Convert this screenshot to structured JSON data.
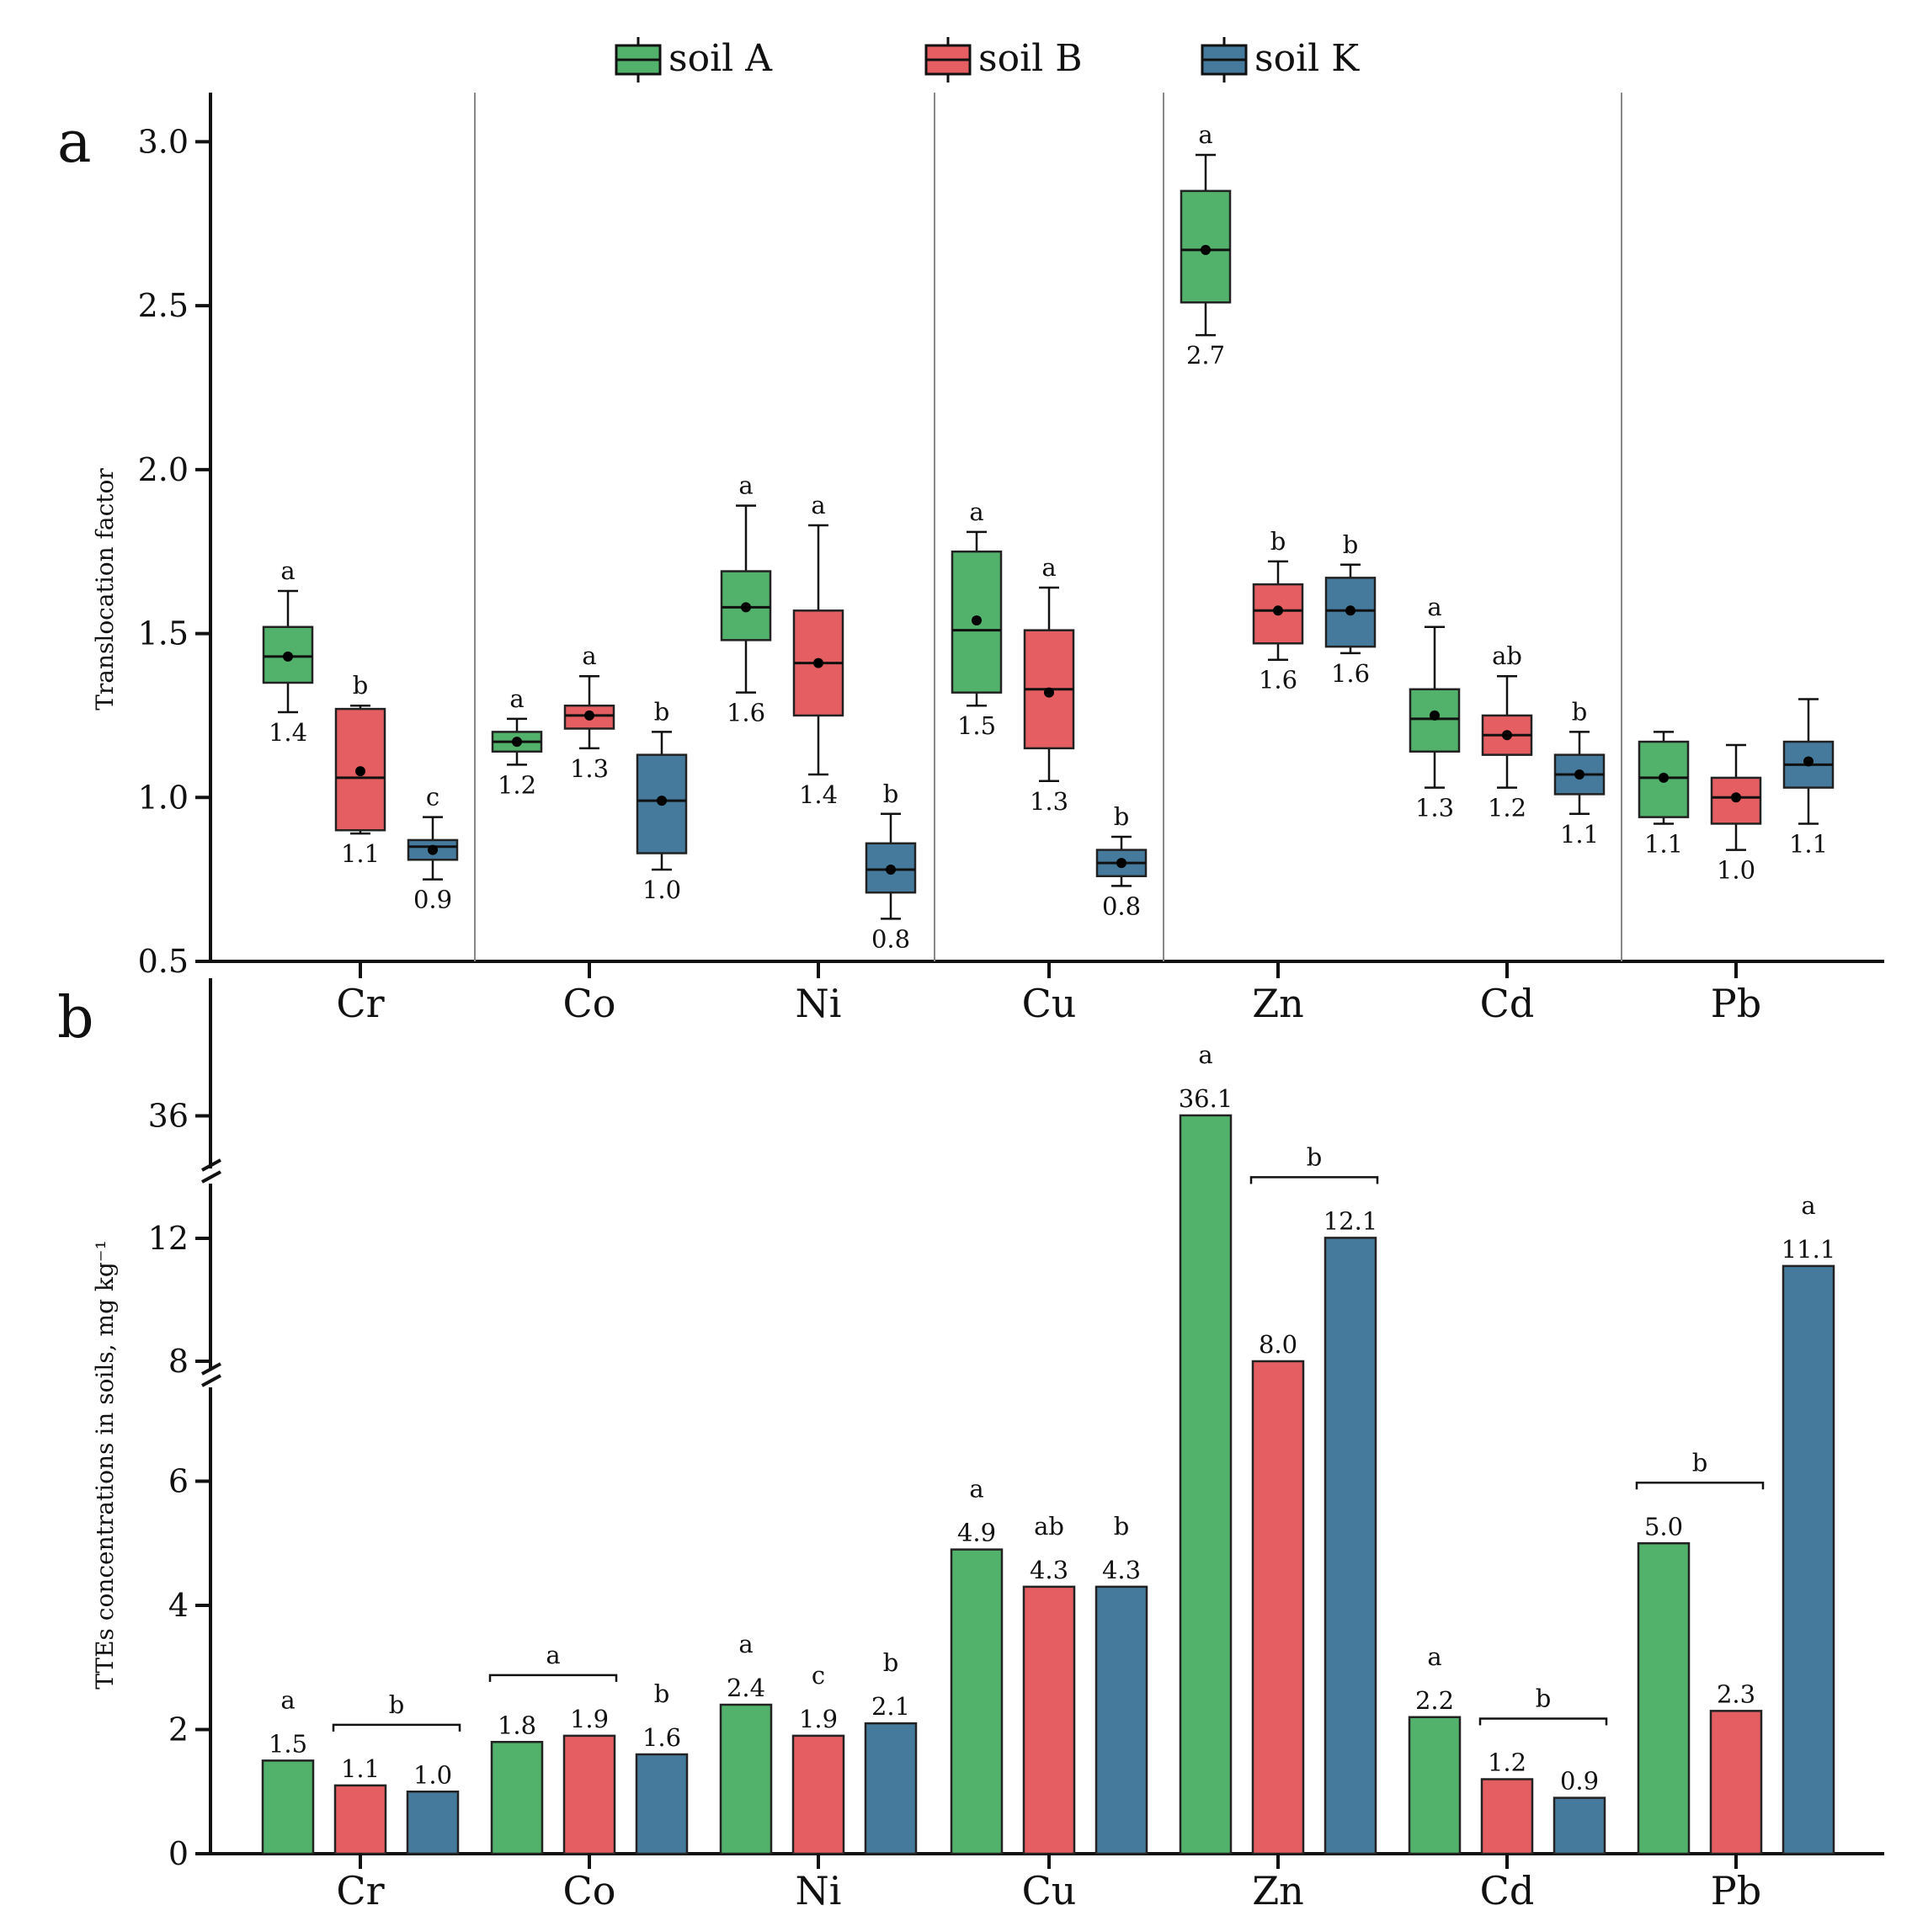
{
  "legend": [
    {
      "name": "soil A",
      "color": "#52b26b"
    },
    {
      "name": "soil B",
      "color": "#e55f62"
    },
    {
      "name": "soil K",
      "color": "#457a9c"
    }
  ],
  "chart_data": [
    {
      "panel": "a",
      "type": "box",
      "ylabel": "Translocation factor",
      "ylim": [
        0.5,
        3.15
      ],
      "yticks": [
        "0.5",
        "1.0",
        "1.5",
        "2.0",
        "2.5",
        "3.0"
      ],
      "categories": [
        "Cr",
        "Co",
        "Ni",
        "Cu",
        "Zn",
        "Cd",
        "Pb"
      ],
      "groups": [
        {
          "category": "Cr",
          "soil": "soil A",
          "min": 1.26,
          "q1": 1.35,
          "median": 1.43,
          "q3": 1.52,
          "max": 1.63,
          "mean": 1.43,
          "label": "1.4",
          "letter": "a"
        },
        {
          "category": "Cr",
          "soil": "soil B",
          "min": 0.89,
          "q1": 0.9,
          "median": 1.06,
          "q3": 1.27,
          "max": 1.28,
          "mean": 1.08,
          "label": "1.1",
          "letter": "b"
        },
        {
          "category": "Cr",
          "soil": "soil K",
          "min": 0.75,
          "q1": 0.81,
          "median": 0.85,
          "q3": 0.87,
          "max": 0.94,
          "mean": 0.84,
          "label": "0.9",
          "letter": "c"
        },
        {
          "category": "Co",
          "soil": "soil A",
          "min": 1.1,
          "q1": 1.14,
          "median": 1.17,
          "q3": 1.2,
          "max": 1.24,
          "mean": 1.17,
          "label": "1.2",
          "letter": "a"
        },
        {
          "category": "Co",
          "soil": "soil B",
          "min": 1.15,
          "q1": 1.21,
          "median": 1.25,
          "q3": 1.28,
          "max": 1.37,
          "mean": 1.25,
          "label": "1.3",
          "letter": "a"
        },
        {
          "category": "Co",
          "soil": "soil K",
          "min": 0.78,
          "q1": 0.83,
          "median": 0.99,
          "q3": 1.13,
          "max": 1.2,
          "mean": 0.99,
          "label": "1.0",
          "letter": "b"
        },
        {
          "category": "Ni",
          "soil": "soil A",
          "min": 1.32,
          "q1": 1.48,
          "median": 1.58,
          "q3": 1.69,
          "max": 1.89,
          "mean": 1.58,
          "label": "1.6",
          "letter": "a"
        },
        {
          "category": "Ni",
          "soil": "soil B",
          "min": 1.07,
          "q1": 1.25,
          "median": 1.41,
          "q3": 1.57,
          "max": 1.83,
          "mean": 1.41,
          "label": "1.4",
          "letter": "a"
        },
        {
          "category": "Ni",
          "soil": "soil K",
          "min": 0.63,
          "q1": 0.71,
          "median": 0.78,
          "q3": 0.86,
          "max": 0.95,
          "mean": 0.78,
          "label": "0.8",
          "letter": "b"
        },
        {
          "category": "Cu",
          "soil": "soil A",
          "min": 1.28,
          "q1": 1.32,
          "median": 1.51,
          "q3": 1.75,
          "max": 1.81,
          "mean": 1.54,
          "label": "1.5",
          "letter": "a"
        },
        {
          "category": "Cu",
          "soil": "soil B",
          "min": 1.05,
          "q1": 1.15,
          "median": 1.33,
          "q3": 1.51,
          "max": 1.64,
          "mean": 1.32,
          "label": "1.3",
          "letter": "a"
        },
        {
          "category": "Cu",
          "soil": "soil K",
          "min": 0.73,
          "q1": 0.76,
          "median": 0.8,
          "q3": 0.84,
          "max": 0.88,
          "mean": 0.8,
          "label": "0.8",
          "letter": "b"
        },
        {
          "category": "Zn",
          "soil": "soil A",
          "min": 2.41,
          "q1": 2.51,
          "median": 2.67,
          "q3": 2.85,
          "max": 2.96,
          "mean": 2.67,
          "label": "2.7",
          "letter": "a"
        },
        {
          "category": "Zn",
          "soil": "soil B",
          "min": 1.42,
          "q1": 1.47,
          "median": 1.57,
          "q3": 1.65,
          "max": 1.72,
          "mean": 1.57,
          "label": "1.6",
          "letter": "b"
        },
        {
          "category": "Zn",
          "soil": "soil K",
          "min": 1.44,
          "q1": 1.46,
          "median": 1.57,
          "q3": 1.67,
          "max": 1.71,
          "mean": 1.57,
          "label": "1.6",
          "letter": "b"
        },
        {
          "category": "Cd",
          "soil": "soil A",
          "min": 1.03,
          "q1": 1.14,
          "median": 1.24,
          "q3": 1.33,
          "max": 1.52,
          "mean": 1.25,
          "label": "1.3",
          "letter": "a"
        },
        {
          "category": "Cd",
          "soil": "soil B",
          "min": 1.03,
          "q1": 1.13,
          "median": 1.19,
          "q3": 1.25,
          "max": 1.37,
          "mean": 1.19,
          "label": "1.2",
          "letter": "ab"
        },
        {
          "category": "Cd",
          "soil": "soil K",
          "min": 0.95,
          "q1": 1.01,
          "median": 1.07,
          "q3": 1.13,
          "max": 1.2,
          "mean": 1.07,
          "label": "1.1",
          "letter": "b"
        },
        {
          "category": "Pb",
          "soil": "soil A",
          "min": 0.92,
          "q1": 0.94,
          "median": 1.06,
          "q3": 1.17,
          "max": 1.2,
          "mean": 1.06,
          "label": "1.1",
          "letter": ""
        },
        {
          "category": "Pb",
          "soil": "soil B",
          "min": 0.84,
          "q1": 0.92,
          "median": 1.0,
          "q3": 1.06,
          "max": 1.16,
          "mean": 1.0,
          "label": "1.0",
          "letter": ""
        },
        {
          "category": "Pb",
          "soil": "soil K",
          "min": 0.92,
          "q1": 1.03,
          "median": 1.1,
          "q3": 1.17,
          "max": 1.3,
          "mean": 1.11,
          "label": "1.1",
          "letter": ""
        }
      ]
    },
    {
      "panel": "b",
      "type": "bar",
      "ylabel": "TTEs concentrations in soils, mg kg⁻¹",
      "yaxis_breaks": "0–6, 8–12, 36",
      "yticks": [
        "0",
        "2",
        "4",
        "6",
        "8",
        "12",
        "36"
      ],
      "categories": [
        "Cr",
        "Co",
        "Ni",
        "Cu",
        "Zn",
        "Cd",
        "Pb"
      ],
      "series": [
        {
          "name": "soil A",
          "values": [
            1.5,
            1.8,
            2.4,
            4.9,
            36.1,
            2.2,
            5.0
          ],
          "labels": [
            "1.5",
            "1.8",
            "2.4",
            "4.9",
            "36.1",
            "2.2",
            "5.0"
          ],
          "letters": [
            "a",
            "",
            "a",
            "a",
            "a",
            "a",
            ""
          ]
        },
        {
          "name": "soil B",
          "values": [
            1.1,
            1.9,
            1.9,
            4.3,
            8.0,
            1.2,
            2.3
          ],
          "labels": [
            "1.1",
            "1.9",
            "1.9",
            "4.3",
            "8.0",
            "1.2",
            "2.3"
          ],
          "letters": [
            "",
            "",
            "c",
            "ab",
            "",
            "",
            ""
          ]
        },
        {
          "name": "soil K",
          "values": [
            1.0,
            1.6,
            2.1,
            4.3,
            12.1,
            0.9,
            11.1
          ],
          "labels": [
            "1.0",
            "1.6",
            "2.1",
            "4.3",
            "12.1",
            "0.9",
            "11.1"
          ],
          "letters": [
            "",
            "b",
            "b",
            "b",
            "",
            "",
            "a"
          ]
        }
      ],
      "brackets": [
        {
          "category": "Cr",
          "span": [
            "soil B",
            "soil K"
          ],
          "letter": "b"
        },
        {
          "category": "Co",
          "span": [
            "soil A",
            "soil B"
          ],
          "letter": "a"
        },
        {
          "category": "Zn",
          "span": [
            "soil B",
            "soil K"
          ],
          "letter": "b"
        },
        {
          "category": "Cd",
          "span": [
            "soil B",
            "soil K"
          ],
          "letter": "b"
        },
        {
          "category": "Pb",
          "span": [
            "soil A",
            "soil B"
          ],
          "letter": "b"
        }
      ]
    }
  ]
}
